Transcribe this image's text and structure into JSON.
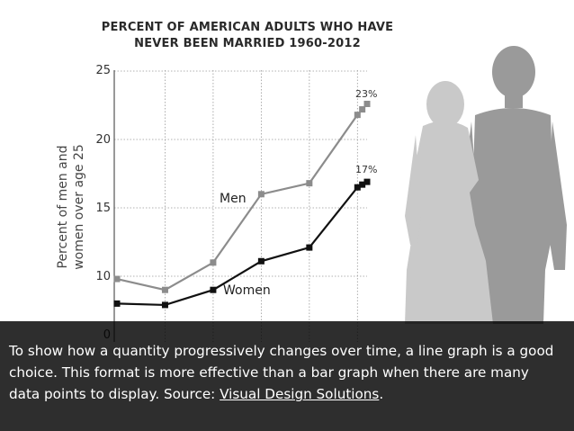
{
  "chart_data": {
    "type": "line",
    "title": "PERCENT OF AMERICAN ADULTS WHO HAVE",
    "subtitle": "NEVER BEEN MARRIED 1960-2012",
    "ylabel_line1": "Percent of men and",
    "ylabel_line2": "women over age 25",
    "ylim": [
      0,
      25
    ],
    "yticks": [
      "25",
      "20",
      "15",
      "10",
      "0"
    ],
    "grid": true,
    "series": [
      {
        "name": "Men",
        "color": "#8c8c8c",
        "end_label": "23%",
        "points": [
          [
            1960,
            9.8
          ],
          [
            1970,
            9.0
          ],
          [
            1980,
            11.0
          ],
          [
            1990,
            16.0
          ],
          [
            2000,
            16.8
          ],
          [
            2010,
            21.8
          ],
          [
            2011,
            22.2
          ],
          [
            2012,
            22.6
          ]
        ]
      },
      {
        "name": "Women",
        "color": "#111111",
        "end_label": "17%",
        "points": [
          [
            1960,
            8.0
          ],
          [
            1970,
            7.9
          ],
          [
            1980,
            9.0
          ],
          [
            1990,
            11.1
          ],
          [
            2000,
            12.1
          ],
          [
            2010,
            16.5
          ],
          [
            2011,
            16.7
          ],
          [
            2012,
            16.9
          ]
        ]
      }
    ]
  },
  "caption": {
    "text_before": "To show how a quantity progressively changes over time, a line graph is a good choice. This format is more effective than a bar graph when there are many data points to display. Source: ",
    "link": "Visual Design Solutions",
    "text_after": "."
  }
}
